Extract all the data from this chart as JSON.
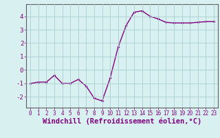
{
  "x": [
    0,
    1,
    2,
    3,
    4,
    5,
    6,
    7,
    8,
    9,
    10,
    11,
    12,
    13,
    14,
    15,
    16,
    17,
    18,
    19,
    20,
    21,
    22,
    23
  ],
  "y": [
    -1.0,
    -0.9,
    -0.9,
    -0.4,
    -1.0,
    -1.0,
    -0.7,
    -1.2,
    -2.1,
    -2.3,
    -0.6,
    1.7,
    3.3,
    4.3,
    4.4,
    4.0,
    3.8,
    3.55,
    3.5,
    3.5,
    3.5,
    3.55,
    3.6,
    3.6
  ],
  "line_color": "#800080",
  "marker": "D",
  "marker_size": 2,
  "bg_color": "#d8f0f0",
  "grid_color": "#aacece",
  "xlabel": "Windchill (Refroidissement éolien,°C)",
  "xlabel_color": "#800080",
  "tick_color": "#800080",
  "ylabel_ticks": [
    -2,
    -1,
    0,
    1,
    2,
    3,
    4
  ],
  "xticks": [
    0,
    1,
    2,
    3,
    4,
    5,
    6,
    7,
    8,
    9,
    10,
    11,
    12,
    13,
    14,
    15,
    16,
    17,
    18,
    19,
    20,
    21,
    22,
    23
  ],
  "ylim": [
    -2.8,
    4.9
  ],
  "xlim": [
    -0.5,
    23.5
  ],
  "font_size": 6.5,
  "xlabel_fontsize": 7.5,
  "tick_fontsize": 5.5,
  "linewidth": 1.0
}
